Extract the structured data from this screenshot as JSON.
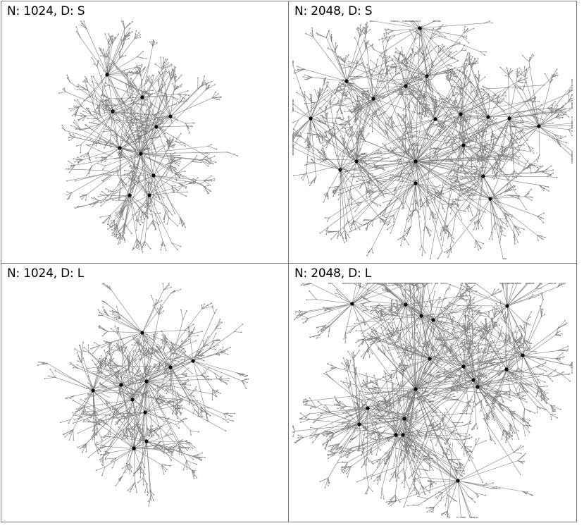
{
  "panels": [
    {
      "label": "N: 1024, D: S",
      "nodes": 1024,
      "distribution": "S"
    },
    {
      "label": "N: 2048, D: S",
      "nodes": 2048,
      "distribution": "S"
    },
    {
      "label": "N: 1024, D: L",
      "nodes": 1024,
      "distribution": "L"
    },
    {
      "label": "N: 2048, D: L",
      "nodes": 2048,
      "distribution": "L"
    }
  ],
  "colors": {
    "edge": "#7d7d7d",
    "leaf": "#8a8a8a",
    "hub": "#000000",
    "border": "#7a7a7a"
  }
}
